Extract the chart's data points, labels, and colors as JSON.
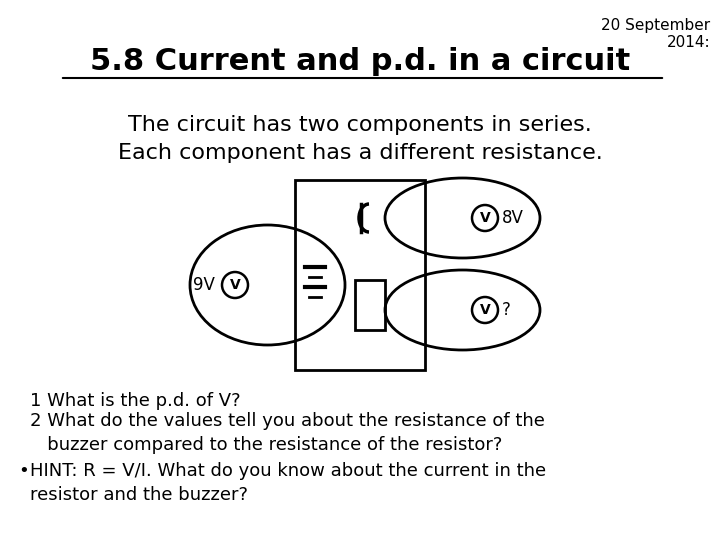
{
  "title": "5.8 Current and p.d. in a circuit",
  "date": "20 September\n2014:",
  "body_text": "The circuit has two components in series.\nEach component has a different resistance.",
  "q1": "1 What is the p.d. of V?",
  "q2": "2 What do the values tell you about the resistance of the\n   buzzer compared to the resistance of the resistor?",
  "hint": "HINT: R = V/I. What do you know about the current in the\nresistor and the buzzer?",
  "label_9V": "9V",
  "label_8V": "8V",
  "label_q": "?",
  "bg_color": "#ffffff",
  "text_color": "#000000",
  "title_fontsize": 22,
  "body_fontsize": 16,
  "small_fontsize": 13
}
